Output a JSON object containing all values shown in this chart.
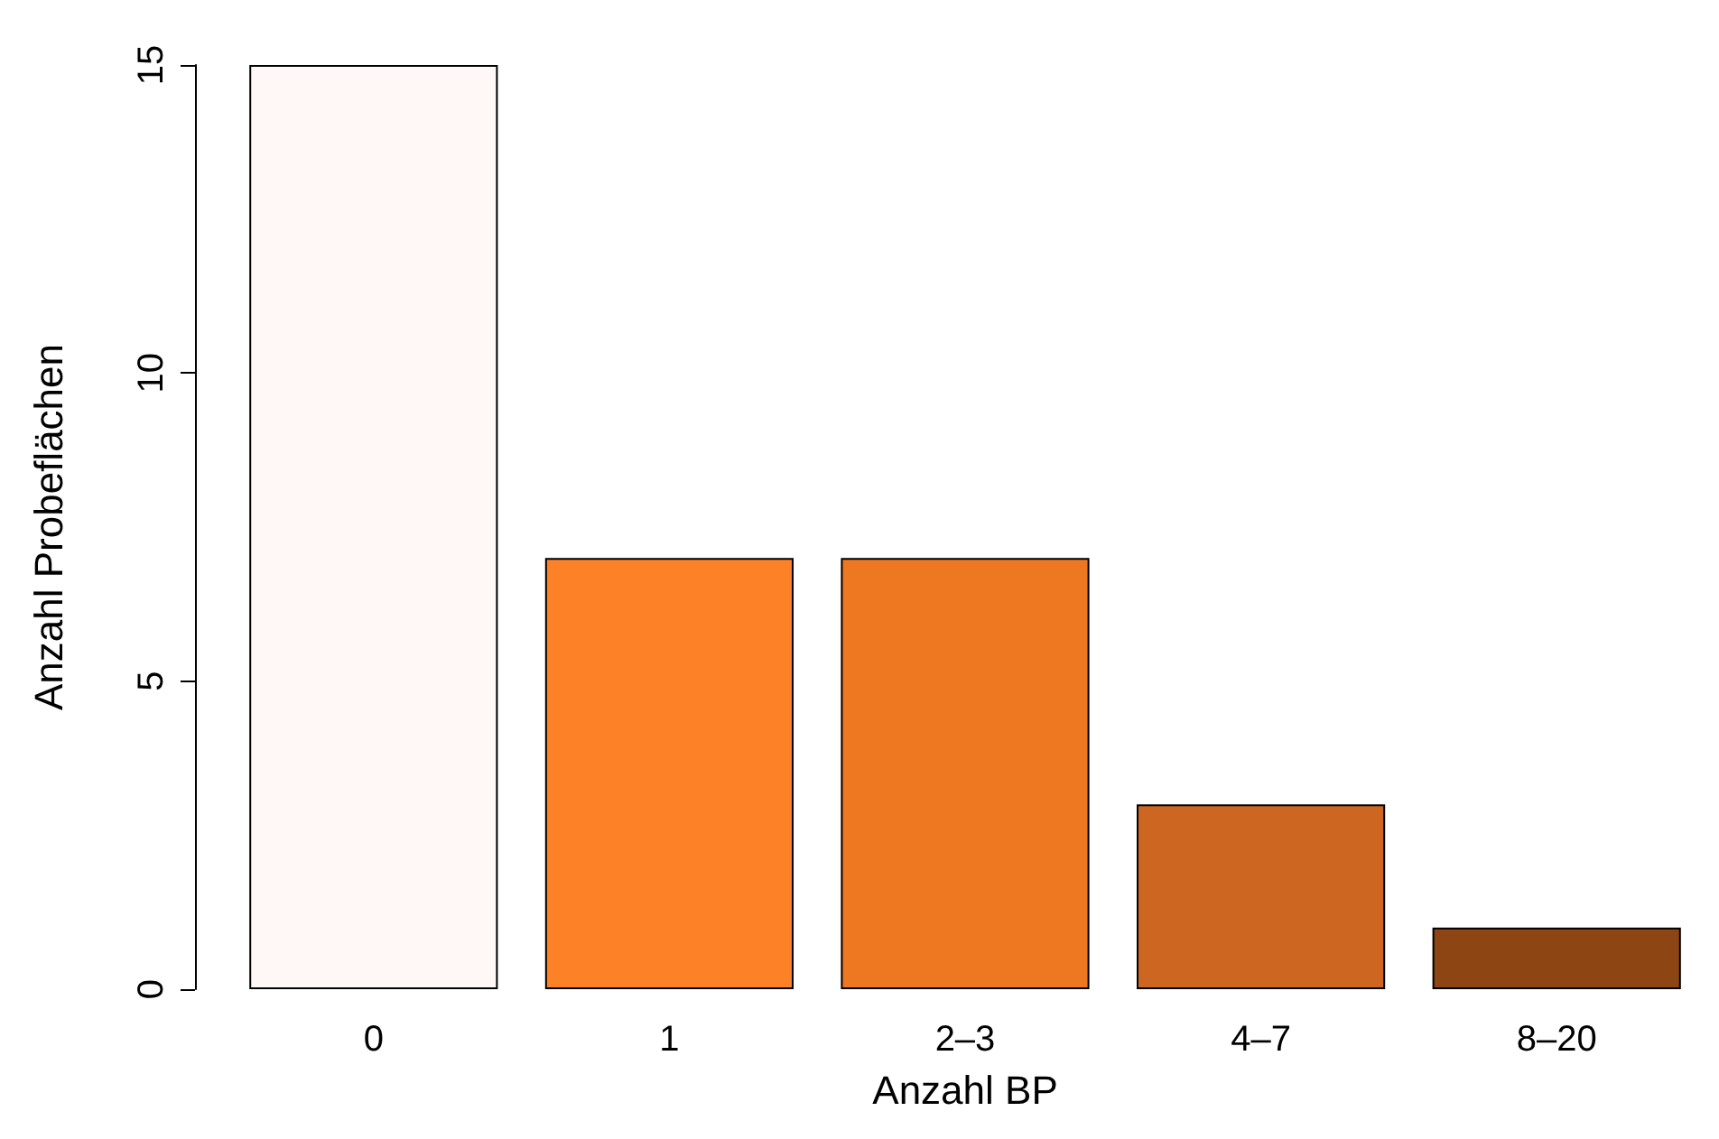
{
  "chart_data": {
    "type": "bar",
    "xlabel": "Anzahl BP",
    "ylabel": "Anzahl Probeflächen",
    "categories": [
      "0",
      "1",
      "2–3",
      "4–7",
      "8–20"
    ],
    "values": [
      15,
      7,
      7,
      3,
      1
    ],
    "colors": [
      "#fff8f6",
      "#fd8127",
      "#ee7722",
      "#cc6620",
      "#8c4513"
    ],
    "ylim": [
      0,
      15
    ],
    "yticks": [
      0,
      5,
      10,
      15
    ],
    "grid": false
  }
}
